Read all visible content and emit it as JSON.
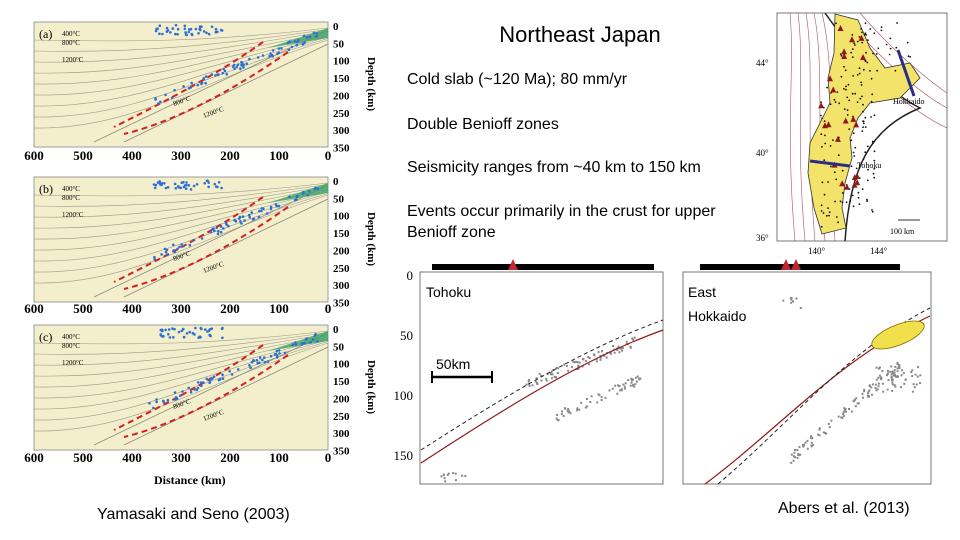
{
  "slide": {
    "title": "Northeast Japan",
    "bullets": [
      "Cold slab (~120 Ma); 80 mm/yr",
      "Double Benioff zones",
      "Seismicity ranges from ~40 km to 150 km",
      "Events occur primarily in the crust for upper Benioff zone"
    ],
    "citation_left": "Yamasaki and Seno (2003)",
    "citation_right": "Abers et al. (2013)"
  },
  "left_figure": {
    "panels": [
      {
        "label": "(a)",
        "isotherms": [
          "400°C",
          "800°C",
          "1200°C"
        ],
        "inner_isotherms": [
          "800°C",
          "1200°C"
        ]
      },
      {
        "label": "(b)",
        "isotherms": [
          "400°C",
          "800°C",
          "1200°C"
        ],
        "inner_isotherms": [
          "800°C",
          "1200°C"
        ]
      },
      {
        "label": "(c)",
        "isotherms": [
          "400°C",
          "800°C",
          "1200°C"
        ],
        "inner_isotherms": [
          "800°C",
          "1200°C"
        ]
      }
    ],
    "x_ticks": [
      "600",
      "500",
      "400",
      "300",
      "200",
      "100",
      "0"
    ],
    "y_ticks": [
      "0",
      "50",
      "100",
      "150",
      "200",
      "250",
      "300",
      "350"
    ],
    "x_label": "Distance (km)",
    "y_label": "Depth (km)"
  },
  "right_figure": {
    "y_ticks": [
      "0",
      "50",
      "100",
      "150"
    ],
    "panel_left_label": "Tohoku",
    "panel_right_label": "East",
    "panel_right_label2": "Hokkaido",
    "scale_label": "50km"
  },
  "map": {
    "lat_labels": [
      "44°",
      "40°",
      "36°"
    ],
    "lon_labels": [
      "140°",
      "144°"
    ],
    "place_labels": [
      "Hokkaido",
      "Tohoku"
    ],
    "scale_label": "100 km"
  }
}
